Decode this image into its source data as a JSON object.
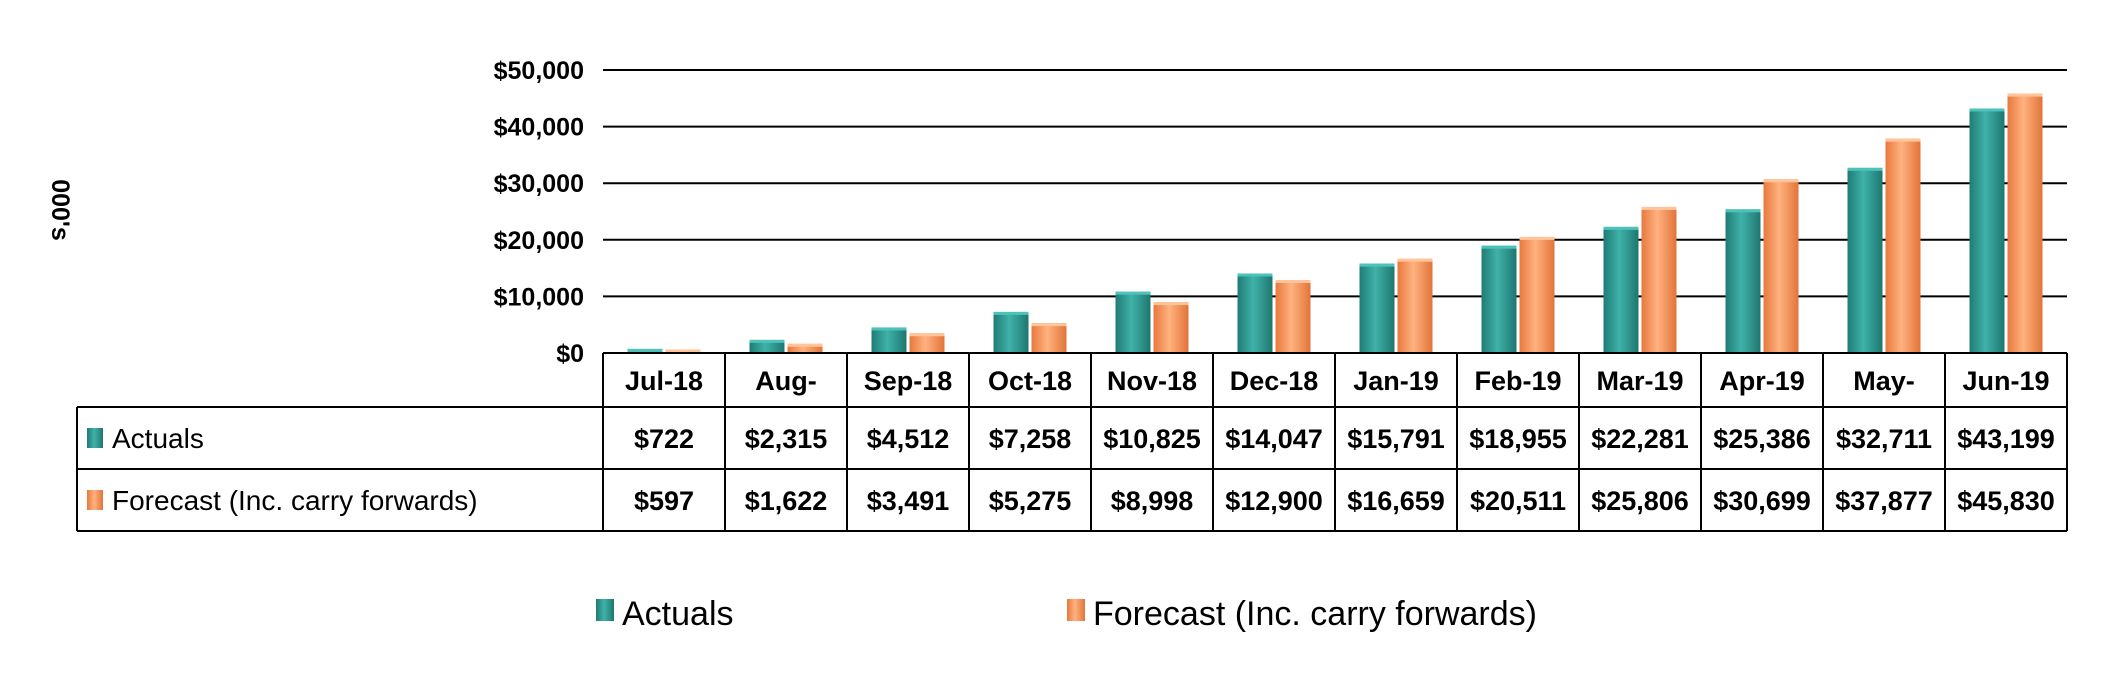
{
  "chart_data": {
    "type": "bar",
    "ylabel": "000's",
    "yticks": [
      "$0",
      "$10,000",
      "$20,000",
      "$30,000",
      "$40,000",
      "$50,000"
    ],
    "ylim": [
      0,
      50000
    ],
    "grid": true,
    "legend": "bottom",
    "categories": [
      "Jul-18",
      "Aug-",
      "Sep-18",
      "Oct-18",
      "Nov-18",
      "Dec-18",
      "Jan-19",
      "Feb-19",
      "Mar-19",
      "Apr-19",
      "May-",
      "Jun-19"
    ],
    "series": [
      {
        "name": "Actuals",
        "color": "#2E9A92",
        "values": [
          722,
          2315,
          4512,
          7258,
          10825,
          14047,
          15791,
          18955,
          22281,
          25386,
          32711,
          43199
        ],
        "labels": [
          "$722",
          "$2,315",
          "$4,512",
          "$7,258",
          "$10,825",
          "$14,047",
          "$15,791",
          "$18,955",
          "$22,281",
          "$25,386",
          "$32,711",
          "$43,199"
        ]
      },
      {
        "name": "Forecast (Inc. carry forwards)",
        "color": "#F5935B",
        "values": [
          597,
          1622,
          3491,
          5275,
          8998,
          12900,
          16659,
          20511,
          25806,
          30699,
          37877,
          45830
        ],
        "labels": [
          "$597",
          "$1,622",
          "$3,491",
          "$5,275",
          "$8,998",
          "$12,900",
          "$16,659",
          "$20,511",
          "$25,806",
          "$30,699",
          "$37,877",
          "$45,830"
        ]
      }
    ]
  }
}
